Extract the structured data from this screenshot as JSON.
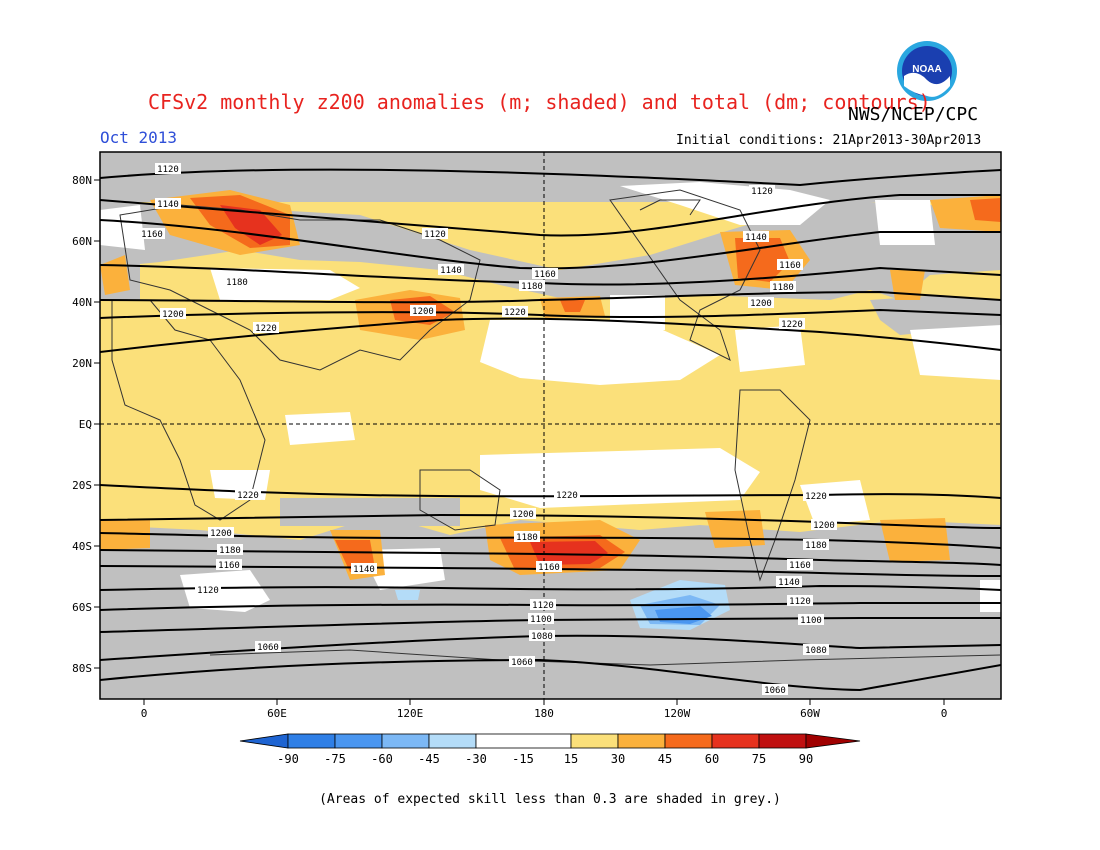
{
  "header": {
    "title": "CFSv2 monthly z200 anomalies (m; shaded) and total (dm; contours)",
    "agency": "NWS/NCEP/CPC",
    "month": "Oct 2013",
    "initial_conditions": "Initial conditions: 21Apr2013-30Apr2013",
    "logo_text": "NOAA"
  },
  "axes": {
    "lat_labels": [
      "80N",
      "60N",
      "40N",
      "20N",
      "EQ",
      "20S",
      "40S",
      "60S",
      "80S"
    ],
    "lon_labels": [
      "0",
      "60E",
      "120E",
      "180",
      "120W",
      "60W",
      "0"
    ]
  },
  "contour_labels": {
    "c1060": "1060",
    "c1080": "1080",
    "c1100": "1100",
    "c1120": "1120",
    "c1140": "1140",
    "c1160": "1160",
    "c1180": "1180",
    "c1200": "1200",
    "c1220": "1220"
  },
  "colorbar": {
    "labels": [
      "-90",
      "-75",
      "-60",
      "-45",
      "-30",
      "-15",
      "15",
      "30",
      "45",
      "60",
      "75",
      "90"
    ],
    "colors": [
      "#1e64d2",
      "#2f7fe6",
      "#4a96f0",
      "#7cb8f5",
      "#b4dcf8",
      "#ffffff",
      "#fbe07a",
      "#fbb13c",
      "#f56a1c",
      "#e6321e",
      "#c01010"
    ]
  },
  "colors": {
    "grey_mask": "#c0c0c0",
    "title_red": "#e8231f",
    "month_blue": "#2f4fd8"
  },
  "footer": {
    "note": "(Areas of expected skill less than 0.3 are shaded in grey.)"
  }
}
